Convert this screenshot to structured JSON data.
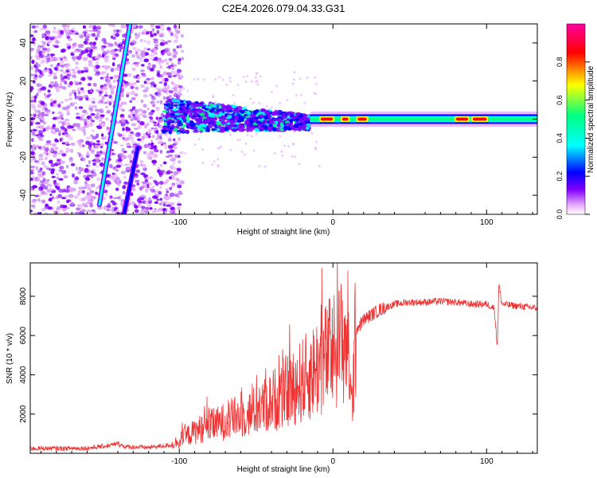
{
  "title": "C2E4.2026.079.04.33.G31",
  "chart_data": [
    {
      "type": "heatmap",
      "name": "spectrogram",
      "xlabel": "Height of straight line (km)",
      "ylabel": "Frequency (Hz)",
      "xlim": [
        -197,
        133
      ],
      "ylim": [
        -50,
        50
      ],
      "xticks": [
        -100,
        0,
        100
      ],
      "xtick_labels": [
        "-100",
        "0",
        "100"
      ],
      "yticks": [
        -40,
        -20,
        0,
        20,
        40
      ],
      "ytick_labels": [
        "-40",
        "-20",
        "0",
        "20",
        "40"
      ],
      "colorbar": {
        "label": "Normalized spectral amplitude",
        "range": [
          0,
          1
        ],
        "ticks": [
          0.0,
          0.2,
          0.4,
          0.6,
          0.8
        ],
        "tick_labels": [
          "0.0",
          "0.2",
          "0.4",
          "0.6",
          "0.8"
        ],
        "colormap": [
          "#ffffff",
          "#e6a8ff",
          "#8000ff",
          "#0000ff",
          "#00ffff",
          "#00ff80",
          "#ffff00",
          "#ff0000",
          "#ff00a0"
        ]
      },
      "features": {
        "noise_region_x": [
          -197,
          -108
        ],
        "main_signal_center_hz": 0,
        "diagonal_traces": [
          {
            "x": [
              -152,
              -132
            ],
            "y": [
              -45,
              50
            ]
          },
          {
            "x": [
              -136,
              -127
            ],
            "y": [
              -50,
              -15
            ]
          }
        ],
        "peak_segments_x": [
          [
            -8,
            0
          ],
          [
            6,
            10
          ],
          [
            16,
            22
          ],
          [
            80,
            88
          ],
          [
            91,
            100
          ]
        ]
      }
    },
    {
      "type": "line",
      "name": "snr",
      "xlabel": "Height of straight line (km)",
      "ylabel": "SNR (10 * v/v)",
      "xlim": [
        -197,
        133
      ],
      "ylim": [
        0,
        9700
      ],
      "xticks": [
        -100,
        0,
        100
      ],
      "xtick_labels": [
        "-100",
        "0",
        "100"
      ],
      "yticks": [
        2000,
        4000,
        6000,
        8000
      ],
      "ytick_labels": [
        "2000",
        "4000",
        "6000",
        "8000"
      ],
      "series": [
        {
          "name": "SNR",
          "color": "#ee3333",
          "x": [
            -197,
            -180,
            -160,
            -145,
            -140,
            -135,
            -120,
            -105,
            -95,
            -85,
            -75,
            -65,
            -55,
            -45,
            -35,
            -25,
            -15,
            -8,
            0,
            5,
            10,
            12,
            15,
            20,
            30,
            40,
            50,
            60,
            70,
            80,
            90,
            100,
            105,
            107,
            108,
            110,
            120,
            133
          ],
          "y": [
            250,
            250,
            260,
            400,
            500,
            330,
            300,
            420,
            900,
            1300,
            1500,
            1800,
            2000,
            2400,
            2900,
            3400,
            4000,
            4600,
            5200,
            5600,
            6000,
            2100,
            6300,
            6800,
            7300,
            7600,
            7700,
            7700,
            7750,
            7700,
            7600,
            7600,
            7400,
            5400,
            8600,
            7600,
            7500,
            7400
          ]
        }
      ]
    }
  ]
}
